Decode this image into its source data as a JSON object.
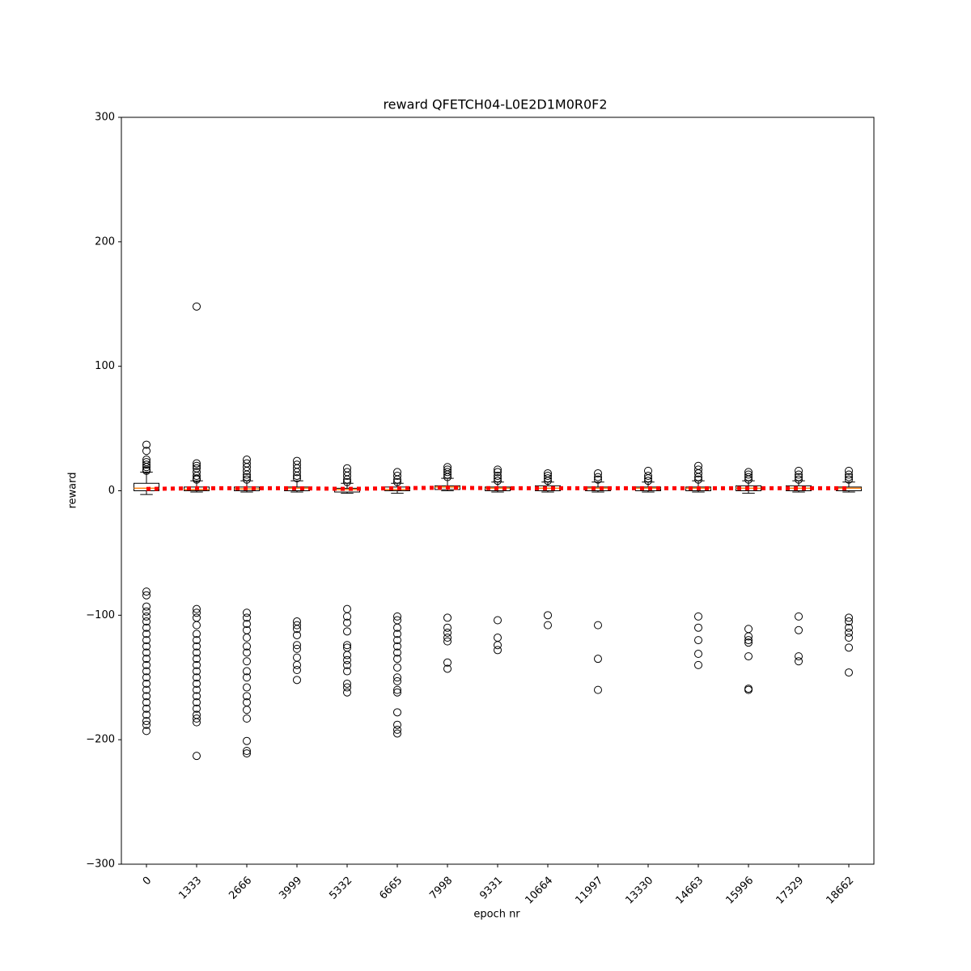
{
  "chart_data": {
    "type": "box",
    "title": "reward QFETCH04-L0E2D1M0R0F2",
    "x_label": "epoch nr",
    "y_label": "reward",
    "categories": [
      "0",
      "1333",
      "2666",
      "3999",
      "5332",
      "6665",
      "7998",
      "9331",
      "10664",
      "11997",
      "13330",
      "14663",
      "15996",
      "17329",
      "18662"
    ],
    "boxes": [
      {
        "whislo": -3,
        "q1": 0,
        "med": 2,
        "q3": 6,
        "whishi": 15,
        "fliers": [
          37,
          32,
          25,
          23,
          21,
          19,
          17,
          16,
          -81,
          -84,
          -93,
          -97,
          -101,
          -105,
          -110,
          -115,
          -120,
          -125,
          -130,
          -135,
          -140,
          -145,
          -150,
          -155,
          -160,
          -165,
          -170,
          -175,
          -180,
          -185,
          -188,
          -193
        ]
      },
      {
        "whislo": -1,
        "q1": 0,
        "med": 1,
        "q3": 3,
        "whishi": 8,
        "fliers": [
          148,
          22,
          20,
          18,
          15,
          12,
          10,
          9,
          -95,
          -98,
          -102,
          -108,
          -115,
          -120,
          -125,
          -130,
          -135,
          -140,
          -145,
          -150,
          -155,
          -160,
          -165,
          -170,
          -175,
          -180,
          -183,
          -186,
          -213
        ]
      },
      {
        "whislo": -1,
        "q1": 0,
        "med": 1.5,
        "q3": 3,
        "whishi": 8,
        "fliers": [
          25,
          22,
          19,
          16,
          13,
          11,
          9,
          -98,
          -102,
          -107,
          -112,
          -118,
          -125,
          -130,
          -137,
          -145,
          -150,
          -158,
          -165,
          -170,
          -176,
          -183,
          -201,
          -209,
          -211
        ]
      },
      {
        "whislo": -1,
        "q1": 0,
        "med": 2,
        "q3": 3,
        "whishi": 8,
        "fliers": [
          24,
          21,
          18,
          15,
          12,
          10,
          -105,
          -108,
          -111,
          -116,
          -124,
          -127,
          -134,
          -140,
          -144,
          -152
        ]
      },
      {
        "whislo": -2,
        "q1": -1,
        "med": 1,
        "q3": 2,
        "whishi": 6,
        "fliers": [
          18,
          15,
          12,
          9,
          7,
          -95,
          -101,
          -106,
          -113,
          -124,
          -126,
          -132,
          -136,
          -140,
          -145,
          -155,
          -158,
          -162
        ]
      },
      {
        "whislo": -2,
        "q1": 0,
        "med": 1,
        "q3": 3,
        "whishi": 6,
        "fliers": [
          15,
          12,
          9,
          7,
          -101,
          -104,
          -110,
          -115,
          -120,
          -125,
          -130,
          -135,
          -142,
          -150,
          -153,
          -160,
          -162,
          -178,
          -188,
          -192,
          -195
        ]
      },
      {
        "whislo": 0,
        "q1": 1,
        "med": 3,
        "q3": 4,
        "whishi": 10,
        "fliers": [
          19,
          17,
          15,
          13,
          11,
          -102,
          -110,
          -114,
          -118,
          -121,
          -138,
          -143
        ]
      },
      {
        "whislo": -1,
        "q1": 0,
        "med": 2,
        "q3": 3,
        "whishi": 7,
        "fliers": [
          17,
          15,
          12,
          10,
          8,
          -104,
          -118,
          -124,
          -128
        ]
      },
      {
        "whislo": -1,
        "q1": 0,
        "med": 2,
        "q3": 4,
        "whishi": 7,
        "fliers": [
          14,
          12,
          10,
          8,
          -100,
          -108
        ]
      },
      {
        "whislo": -1,
        "q1": 0,
        "med": 2,
        "q3": 3,
        "whishi": 7,
        "fliers": [
          14,
          11,
          9,
          -108,
          -135,
          -160
        ]
      },
      {
        "whislo": -1,
        "q1": 0,
        "med": 2,
        "q3": 3,
        "whishi": 7,
        "fliers": [
          16,
          12,
          10,
          8
        ]
      },
      {
        "whislo": -1,
        "q1": 0,
        "med": 2,
        "q3": 3,
        "whishi": 8,
        "fliers": [
          20,
          17,
          14,
          11,
          9,
          -101,
          -110,
          -120,
          -131,
          -140
        ]
      },
      {
        "whislo": -2,
        "q1": 0,
        "med": 2,
        "q3": 4,
        "whishi": 8,
        "fliers": [
          15,
          13,
          11,
          9,
          -111,
          -117,
          -120,
          -122,
          -133,
          -159,
          -160
        ]
      },
      {
        "whislo": -1,
        "q1": 0,
        "med": 2,
        "q3": 4,
        "whishi": 8,
        "fliers": [
          16,
          13,
          11,
          9,
          -101,
          -112,
          -133,
          -137
        ]
      },
      {
        "whislo": -1,
        "q1": 0,
        "med": 2,
        "q3": 3,
        "whishi": 7,
        "fliers": [
          16,
          13,
          11,
          9,
          -102,
          -105,
          -110,
          -114,
          -118,
          -126,
          -146
        ]
      }
    ],
    "box_color": "#000000",
    "median_color": "#ff7f0e",
    "mean_line": {
      "color": "#ff0000",
      "values": [
        1.5,
        2,
        2,
        2,
        1.5,
        2,
        2.5,
        2,
        2,
        2,
        2,
        2,
        2,
        2,
        2
      ]
    },
    "ylim": [
      -300,
      300
    ],
    "yticks": [
      {
        "value": -300,
        "label": "−300"
      },
      {
        "value": -200,
        "label": "−200"
      },
      {
        "value": -100,
        "label": "−100"
      },
      0,
      100,
      200,
      300
    ]
  }
}
